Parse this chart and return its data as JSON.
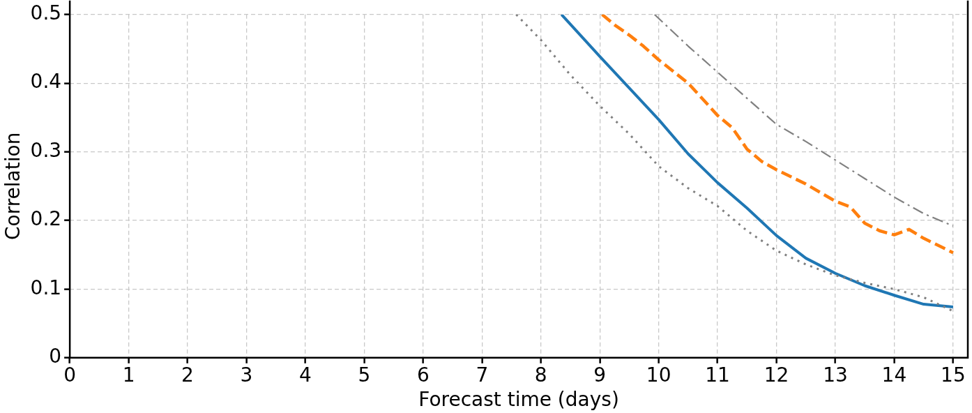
{
  "chart_data": {
    "type": "line",
    "xlabel": "Forecast time (days)",
    "ylabel": "Correlation",
    "xlim": [
      0,
      15.25
    ],
    "ylim": [
      0,
      0.5
    ],
    "xticks": [
      0,
      1,
      2,
      3,
      4,
      5,
      6,
      7,
      8,
      9,
      10,
      11,
      12,
      13,
      14,
      15
    ],
    "yticks": [
      0,
      0.1,
      0.2,
      0.3,
      0.4,
      0.5
    ],
    "grid": true,
    "legend": false,
    "marker": "none",
    "series": [
      {
        "color": "#808080",
        "line_style": "dotted",
        "x": [
          7.58,
          8,
          8.5,
          9,
          9.5,
          10,
          10.5,
          11,
          11.5,
          12,
          12.5,
          13,
          13.5,
          14,
          14.5,
          15
        ],
        "values": [
          0.5,
          0.463,
          0.412,
          0.367,
          0.326,
          0.279,
          0.247,
          0.221,
          0.185,
          0.156,
          0.136,
          0.12,
          0.109,
          0.1,
          0.088,
          0.068
        ]
      },
      {
        "color": "#808080",
        "line_style": "dashdot",
        "x": [
          9.93,
          10.5,
          11,
          12,
          12.5,
          13,
          13.5,
          14,
          14.5,
          15
        ],
        "values": [
          0.5,
          0.454,
          0.416,
          0.34,
          0.315,
          0.288,
          0.261,
          0.234,
          0.21,
          0.192
        ]
      },
      {
        "color": "#ff7f0e",
        "line_style": "dashed",
        "x": [
          9.04,
          9.25,
          9.5,
          9.74,
          10,
          10.5,
          10.8,
          11,
          11.25,
          11.5,
          11.75,
          12,
          12.5,
          13,
          13.25,
          13.5,
          13.75,
          14,
          14.25,
          14.5,
          15
        ],
        "values": [
          0.5,
          0.485,
          0.47,
          0.454,
          0.434,
          0.4,
          0.372,
          0.353,
          0.335,
          0.304,
          0.286,
          0.274,
          0.253,
          0.228,
          0.22,
          0.196,
          0.185,
          0.179,
          0.187,
          0.174,
          0.153
        ]
      },
      {
        "color": "#1f77b4",
        "line_style": "solid",
        "x": [
          8.35,
          9,
          9.5,
          10,
          10.5,
          11,
          11.5,
          12,
          12.5,
          13,
          13.5,
          14,
          14.5,
          15
        ],
        "values": [
          0.5,
          0.439,
          0.393,
          0.347,
          0.297,
          0.255,
          0.218,
          0.178,
          0.145,
          0.123,
          0.105,
          0.091,
          0.078,
          0.074
        ]
      }
    ]
  }
}
